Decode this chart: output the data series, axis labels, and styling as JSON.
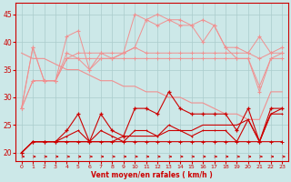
{
  "x": [
    0,
    1,
    2,
    3,
    4,
    5,
    6,
    7,
    8,
    9,
    10,
    11,
    12,
    13,
    14,
    15,
    16,
    17,
    18,
    19,
    20,
    21,
    22,
    23
  ],
  "rafales_high": [
    28,
    39,
    33,
    33,
    41,
    42,
    35,
    38,
    37,
    38,
    45,
    44,
    45,
    44,
    44,
    43,
    44,
    43,
    39,
    39,
    38,
    41,
    38,
    39
  ],
  "rafales_low": [
    28,
    39,
    33,
    33,
    38,
    37,
    35,
    37,
    37,
    38,
    39,
    44,
    43,
    44,
    43,
    43,
    40,
    43,
    39,
    37,
    37,
    31,
    37,
    38
  ],
  "moy_high": [
    28,
    33,
    33,
    33,
    37,
    38,
    38,
    38,
    38,
    38,
    39,
    38,
    38,
    38,
    38,
    38,
    38,
    38,
    38,
    38,
    38,
    37,
    38,
    38
  ],
  "moy_low": [
    28,
    33,
    33,
    33,
    37,
    37,
    37,
    37,
    37,
    37,
    37,
    37,
    37,
    37,
    37,
    37,
    37,
    37,
    37,
    37,
    37,
    32,
    37,
    37
  ],
  "linear_trend": [
    38,
    37,
    37,
    36,
    35,
    35,
    34,
    33,
    33,
    32,
    32,
    31,
    31,
    30,
    30,
    29,
    29,
    28,
    27,
    27,
    26,
    26,
    31,
    31
  ],
  "vent_high": [
    20,
    22,
    22,
    22,
    24,
    27,
    22,
    27,
    24,
    23,
    28,
    28,
    27,
    31,
    28,
    27,
    27,
    27,
    27,
    24,
    28,
    22,
    28,
    28
  ],
  "vent_flat": [
    20,
    22,
    22,
    22,
    22,
    22,
    22,
    22,
    22,
    22,
    22,
    22,
    22,
    22,
    22,
    22,
    22,
    22,
    22,
    22,
    22,
    22,
    22,
    22
  ],
  "vent_mid": [
    20,
    22,
    22,
    22,
    23,
    24,
    22,
    24,
    23,
    22,
    24,
    24,
    23,
    25,
    24,
    23,
    24,
    24,
    24,
    22,
    26,
    22,
    27,
    27
  ],
  "vent_trend": [
    20,
    22,
    22,
    22,
    22,
    22,
    22,
    22,
    22,
    23,
    23,
    23,
    23,
    24,
    24,
    24,
    25,
    25,
    25,
    25,
    26,
    22,
    27,
    28
  ],
  "bg_color": "#cce8e8",
  "grid_color": "#aacccc",
  "line_light": "#f09090",
  "line_dark": "#cc0000",
  "xlabel": "Vent moyen/en rafales ( km/h )",
  "ylim": [
    18.5,
    47
  ],
  "yticks": [
    20,
    25,
    30,
    35,
    40,
    45
  ],
  "xticks": [
    0,
    1,
    2,
    3,
    4,
    5,
    6,
    7,
    8,
    9,
    10,
    11,
    12,
    13,
    14,
    15,
    16,
    17,
    18,
    19,
    20,
    21,
    22,
    23
  ]
}
